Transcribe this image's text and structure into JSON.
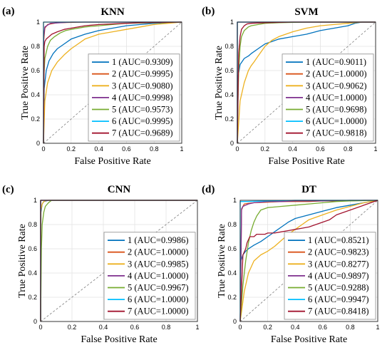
{
  "chart_data": [
    {
      "type": "line",
      "panel_letter": "(a)",
      "title": "KNN",
      "xlabel": "False Positive Rate",
      "ylabel": "True Positive Rate",
      "xlim": [
        0,
        1
      ],
      "ylim": [
        0,
        1
      ],
      "xticks": [
        "0",
        "0.2",
        "0.4",
        "0.6",
        "0.8",
        "1"
      ],
      "yticks": [
        "0",
        "0.2",
        "0.4",
        "0.6",
        "0.8",
        "1"
      ],
      "grid": true,
      "legend_position": "lower-right",
      "series": [
        {
          "name": "1 (AUC=0.9309)",
          "color": "#0072BD",
          "x": [
            0,
            0.005,
            0.02,
            0.04,
            0.07,
            0.1,
            0.15,
            0.2,
            0.3,
            0.4,
            0.5,
            0.6,
            0.7,
            0.8,
            0.9,
            1
          ],
          "y": [
            0,
            0.45,
            0.6,
            0.68,
            0.74,
            0.78,
            0.82,
            0.86,
            0.9,
            0.93,
            0.95,
            0.97,
            0.98,
            0.99,
            0.995,
            1
          ]
        },
        {
          "name": "2 (AUC=0.9995)",
          "color": "#D95319",
          "x": [
            0,
            0.002,
            0.01,
            0.03,
            0.1,
            0.3,
            1
          ],
          "y": [
            0,
            0.85,
            0.95,
            0.98,
            0.995,
            1,
            1
          ]
        },
        {
          "name": "3 (AUC=0.9080)",
          "color": "#EDB120",
          "x": [
            0,
            0.01,
            0.03,
            0.06,
            0.1,
            0.15,
            0.2,
            0.25,
            0.3,
            0.4,
            0.5,
            0.6,
            0.7,
            0.8,
            0.9,
            1
          ],
          "y": [
            0,
            0.35,
            0.5,
            0.6,
            0.67,
            0.73,
            0.78,
            0.82,
            0.86,
            0.9,
            0.92,
            0.94,
            0.96,
            0.98,
            0.99,
            1
          ]
        },
        {
          "name": "4 (AUC=0.9998)",
          "color": "#7E2F8E",
          "x": [
            0,
            0.002,
            0.01,
            0.05,
            0.2,
            1
          ],
          "y": [
            0,
            0.88,
            0.96,
            0.99,
            1,
            1
          ]
        },
        {
          "name": "5 (AUC=0.9573)",
          "color": "#77AC30",
          "x": [
            0,
            0.003,
            0.01,
            0.03,
            0.05,
            0.08,
            0.12,
            0.16,
            0.2,
            0.3,
            0.4,
            0.5,
            0.6,
            0.8,
            1
          ],
          "y": [
            0,
            0.55,
            0.7,
            0.8,
            0.85,
            0.88,
            0.91,
            0.93,
            0.94,
            0.96,
            0.97,
            0.98,
            0.99,
            0.995,
            1
          ]
        },
        {
          "name": "6 (AUC=0.9995)",
          "color": "#00BFFF",
          "x": [
            0,
            0,
            1
          ],
          "y": [
            0,
            1,
            1
          ]
        },
        {
          "name": "7 (AUC=0.9689)",
          "color": "#A2142F",
          "x": [
            0,
            0.005,
            0.01,
            0.02,
            0.04,
            0.06,
            0.1,
            0.15,
            0.2,
            0.3,
            0.4,
            0.5,
            0.7,
            1
          ],
          "y": [
            0,
            0.8,
            0.84,
            0.86,
            0.88,
            0.9,
            0.92,
            0.94,
            0.95,
            0.97,
            0.98,
            0.985,
            0.995,
            1
          ]
        }
      ]
    },
    {
      "type": "line",
      "panel_letter": "(b)",
      "title": "SVM",
      "xlabel": "False Positive Rate",
      "ylabel": "True Positive Rate",
      "xlim": [
        0,
        1
      ],
      "ylim": [
        0,
        1
      ],
      "xticks": [
        "0",
        "0.2",
        "0.4",
        "0.6",
        "0.8",
        "1"
      ],
      "yticks": [
        "0",
        "0.2",
        "0.4",
        "0.6",
        "0.8",
        "1"
      ],
      "grid": true,
      "legend_position": "lower-right",
      "series": [
        {
          "name": "1 (AUC=0.9011)",
          "color": "#0072BD",
          "x": [
            0,
            0.005,
            0.02,
            0.05,
            0.08,
            0.1,
            0.15,
            0.2,
            0.25,
            0.3,
            0.4,
            0.5,
            0.6,
            0.7,
            0.8,
            0.85,
            0.9,
            1
          ],
          "y": [
            0,
            0.55,
            0.65,
            0.7,
            0.72,
            0.74,
            0.78,
            0.82,
            0.84,
            0.86,
            0.88,
            0.9,
            0.93,
            0.95,
            0.97,
            0.99,
            1,
            1
          ]
        },
        {
          "name": "2 (AUC=1.0000)",
          "color": "#D95319",
          "x": [
            0,
            0,
            1
          ],
          "y": [
            0,
            1,
            1
          ]
        },
        {
          "name": "3 (AUC=0.9062)",
          "color": "#EDB120",
          "x": [
            0,
            0.02,
            0.05,
            0.08,
            0.1,
            0.12,
            0.15,
            0.2,
            0.25,
            0.3,
            0.35,
            0.4,
            0.5,
            0.6,
            0.7,
            0.8,
            0.9,
            1
          ],
          "y": [
            0,
            0.35,
            0.5,
            0.6,
            0.64,
            0.67,
            0.72,
            0.8,
            0.85,
            0.88,
            0.9,
            0.92,
            0.95,
            0.97,
            0.98,
            0.99,
            1,
            1
          ]
        },
        {
          "name": "4 (AUC=1.0000)",
          "color": "#7E2F8E",
          "x": [
            0,
            0,
            1
          ],
          "y": [
            0,
            1,
            1
          ]
        },
        {
          "name": "5 (AUC=0.9698)",
          "color": "#77AC30",
          "x": [
            0,
            0.005,
            0.01,
            0.02,
            0.03,
            0.05,
            0.08,
            0.1,
            0.15,
            0.2,
            0.3,
            0.5,
            1
          ],
          "y": [
            0,
            0.35,
            0.6,
            0.8,
            0.88,
            0.93,
            0.96,
            0.97,
            0.98,
            0.99,
            0.995,
            1,
            1
          ]
        },
        {
          "name": "6 (AUC=1.0000)",
          "color": "#00BFFF",
          "x": [
            0,
            0,
            1
          ],
          "y": [
            0,
            1,
            1
          ]
        },
        {
          "name": "7 (AUC=0.9818)",
          "color": "#A2142F",
          "x": [
            0,
            0.005,
            0.01,
            0.02,
            0.03,
            0.05,
            0.07,
            0.1,
            0.2,
            0.4,
            1
          ],
          "y": [
            0,
            0.4,
            0.75,
            0.88,
            0.94,
            0.97,
            0.985,
            0.99,
            0.995,
            1,
            1
          ]
        }
      ]
    },
    {
      "type": "line",
      "panel_letter": "(c)",
      "title": "CNN",
      "xlabel": "False Positive Rate",
      "ylabel": "True Positive Rate",
      "xlim": [
        0,
        1
      ],
      "ylim": [
        0,
        1
      ],
      "xticks": [
        "0",
        "0.2",
        "0.4",
        "0.6",
        "0.8",
        "1"
      ],
      "yticks": [
        "0",
        "0.2",
        "0.4",
        "0.6",
        "0.8",
        "1"
      ],
      "grid": true,
      "legend_position": "lower-right",
      "series": [
        {
          "name": "1 (AUC=0.9986)",
          "color": "#0072BD",
          "x": [
            0,
            0.002,
            0.01,
            0.02,
            0.05,
            1
          ],
          "y": [
            0,
            0.9,
            0.97,
            0.99,
            1,
            1
          ]
        },
        {
          "name": "2 (AUC=1.0000)",
          "color": "#D95319",
          "x": [
            0,
            0,
            1
          ],
          "y": [
            0,
            1,
            1
          ]
        },
        {
          "name": "3 (AUC=0.9985)",
          "color": "#EDB120",
          "x": [
            0,
            0.002,
            0.01,
            0.02,
            0.04,
            1
          ],
          "y": [
            0,
            0.92,
            0.97,
            0.99,
            1,
            1
          ]
        },
        {
          "name": "4 (AUC=1.0000)",
          "color": "#7E2F8E",
          "x": [
            0,
            0,
            1
          ],
          "y": [
            0,
            1,
            1
          ]
        },
        {
          "name": "5 (AUC=0.9967)",
          "color": "#77AC30",
          "x": [
            0,
            0.005,
            0.01,
            0.02,
            0.03,
            0.05,
            0.07,
            1
          ],
          "y": [
            0,
            0.6,
            0.8,
            0.9,
            0.95,
            0.98,
            1,
            1
          ]
        },
        {
          "name": "6 (AUC=1.0000)",
          "color": "#00BFFF",
          "x": [
            0,
            0,
            1
          ],
          "y": [
            0,
            1,
            1
          ]
        },
        {
          "name": "7 (AUC=1.0000)",
          "color": "#A2142F",
          "x": [
            0,
            0,
            1
          ],
          "y": [
            0,
            1,
            1
          ]
        }
      ]
    },
    {
      "type": "line",
      "panel_letter": "(d)",
      "title": "DT",
      "xlabel": "False Positive Rate",
      "ylabel": "True Positive Rate",
      "xlim": [
        0,
        1
      ],
      "ylim": [
        0,
        1
      ],
      "xticks": [
        "0",
        "0.2",
        "0.4",
        "0.6",
        "0.8",
        "1"
      ],
      "yticks": [
        "0",
        "0.2",
        "0.4",
        "0.6",
        "0.8",
        "1"
      ],
      "grid": true,
      "legend_position": "lower-right",
      "series": [
        {
          "name": "1 (AUC=0.8521)",
          "color": "#0072BD",
          "x": [
            0,
            0.005,
            0.02,
            0.04,
            0.06,
            0.1,
            0.15,
            0.2,
            0.25,
            0.3,
            0.35,
            0.4,
            0.5,
            0.6,
            0.7,
            0.8,
            0.9,
            1
          ],
          "y": [
            0,
            0.5,
            0.55,
            0.58,
            0.6,
            0.63,
            0.66,
            0.7,
            0.74,
            0.78,
            0.82,
            0.85,
            0.88,
            0.91,
            0.94,
            0.96,
            0.98,
            1
          ]
        },
        {
          "name": "2 (AUC=0.9823)",
          "color": "#D95319",
          "x": [
            0,
            0.01,
            0.02,
            0.03,
            0.06,
            0.1,
            0.2,
            0.3,
            0.4,
            0.5,
            0.6,
            0.7,
            0.8,
            0.9,
            1
          ],
          "y": [
            0,
            0.92,
            0.95,
            0.97,
            0.975,
            0.98,
            0.985,
            0.99,
            0.99,
            0.99,
            0.995,
            0.995,
            0.995,
            1,
            1
          ]
        },
        {
          "name": "3 (AUC=0.8277)",
          "color": "#EDB120",
          "x": [
            0,
            0.03,
            0.06,
            0.08,
            0.1,
            0.15,
            0.2,
            0.25,
            0.3,
            0.35,
            0.4,
            0.45,
            0.5,
            0.6,
            0.7,
            0.8,
            0.9,
            1
          ],
          "y": [
            0,
            0.25,
            0.4,
            0.45,
            0.5,
            0.55,
            0.58,
            0.62,
            0.67,
            0.72,
            0.76,
            0.8,
            0.84,
            0.88,
            0.92,
            0.95,
            0.98,
            1
          ]
        },
        {
          "name": "4 (AUC=0.9897)",
          "color": "#7E2F8E",
          "x": [
            0,
            0.01,
            0.02,
            0.04,
            0.06,
            0.1,
            0.15,
            0.2,
            0.3,
            0.4,
            0.6,
            0.8,
            1
          ],
          "y": [
            0,
            0.93,
            0.95,
            0.96,
            0.97,
            0.98,
            0.985,
            0.99,
            0.99,
            0.995,
            0.995,
            1,
            1
          ]
        },
        {
          "name": "5 (AUC=0.9288)",
          "color": "#77AC30",
          "x": [
            0,
            0.02,
            0.04,
            0.06,
            0.08,
            0.1,
            0.12,
            0.15,
            0.2,
            0.3,
            0.4,
            0.5,
            0.6,
            0.7,
            0.8,
            1
          ],
          "y": [
            0,
            0.3,
            0.5,
            0.65,
            0.75,
            0.82,
            0.87,
            0.92,
            0.94,
            0.95,
            0.96,
            0.97,
            0.98,
            0.99,
            0.995,
            1
          ]
        },
        {
          "name": "6 (AUC=0.9947)",
          "color": "#00BFFF",
          "x": [
            0,
            0,
            0.05,
            0.2,
            0.4,
            0.6,
            0.8,
            1
          ],
          "y": [
            0,
            0.99,
            0.99,
            0.995,
            1,
            1,
            1,
            1
          ]
        },
        {
          "name": "7 (AUC=0.8418)",
          "color": "#A2142F",
          "x": [
            0,
            0.02,
            0.04,
            0.05,
            0.07,
            0.1,
            0.12,
            0.15,
            0.18,
            0.2,
            0.25,
            0.3,
            0.35,
            0.4,
            0.45,
            0.5,
            0.55,
            0.6,
            0.65,
            0.7,
            0.8,
            0.9,
            1
          ],
          "y": [
            0,
            0.55,
            0.6,
            0.65,
            0.7,
            0.7,
            0.72,
            0.72,
            0.72,
            0.73,
            0.73,
            0.74,
            0.75,
            0.76,
            0.77,
            0.78,
            0.8,
            0.82,
            0.84,
            0.88,
            0.92,
            0.96,
            1
          ]
        }
      ]
    }
  ]
}
